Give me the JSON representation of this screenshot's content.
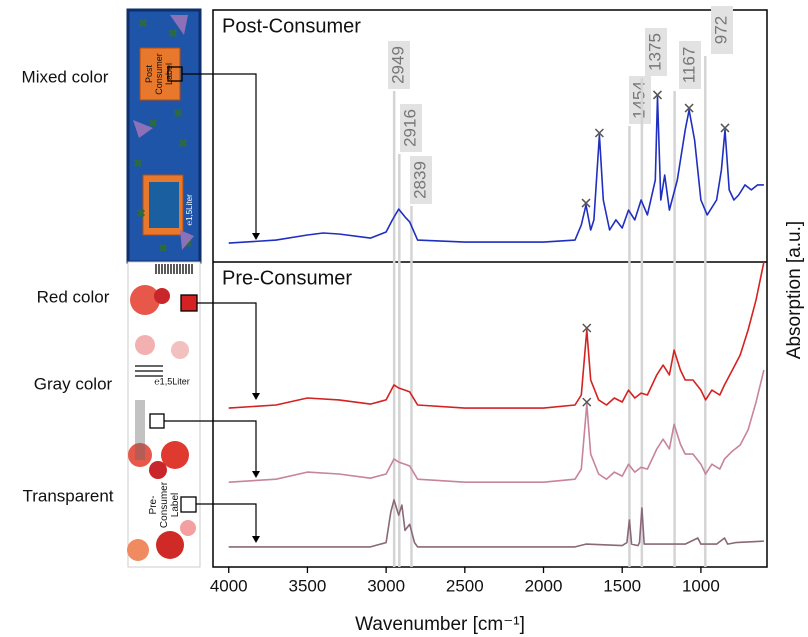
{
  "chart_data": {
    "type": "line",
    "xlabel": "Wavenumber [cm⁻¹]",
    "ylabel": "Absorption [a.u.]",
    "xlim": [
      4100,
      580
    ],
    "xticks": [
      4000,
      3500,
      3000,
      2500,
      2000,
      1500,
      1000
    ],
    "peaks": [
      2949,
      2916,
      2839,
      1454,
      1375,
      1167,
      972
    ],
    "image_labels": {
      "post": [
        "Post",
        "Consumer",
        "Label"
      ],
      "pre": [
        "Pre-",
        "Consumer",
        "Label"
      ],
      "volume": "℮1,5Liter"
    },
    "panels": [
      {
        "title": "Post-Consumer",
        "ylim": [
          0,
          100
        ],
        "series": [
          {
            "name": "Mixed color",
            "color": "#1f2fc0",
            "x": [
              4000,
              3700,
              3500,
              3400,
              3300,
              3100,
              3000,
              2960,
              2920,
              2880,
              2850,
              2800,
              2500,
              2000,
              1800,
              1760,
              1730,
              1700,
              1680,
              1645,
              1620,
              1580,
              1540,
              1500,
              1460,
              1420,
              1380,
              1340,
              1290,
              1276,
              1255,
              1230,
              1200,
              1150,
              1100,
              1075,
              1040,
              1000,
              960,
              900,
              870,
              847,
              820,
              790,
              760,
              720,
              680,
              640,
              600
            ],
            "values": [
              7.5,
              8.7,
              10.7,
              11.5,
              11.1,
              9.5,
              11.9,
              16.7,
              21.0,
              17.9,
              15.9,
              8.7,
              7.9,
              7.9,
              8.7,
              14.7,
              22.6,
              12.7,
              16.7,
              50.4,
              24.6,
              12.7,
              16.7,
              13.5,
              20.6,
              16.7,
              24.6,
              18.7,
              32.5,
              65.5,
              24.6,
              34.5,
              20.6,
              32.5,
              52.4,
              60.3,
              48.4,
              24.6,
              18.7,
              24.6,
              36.5,
              52.4,
              28.6,
              24.6,
              26.6,
              30.6,
              28.6,
              30.6,
              30.6
            ],
            "markers": {
              "x": [
                1730,
                1645,
                1276,
                1075,
                847
              ],
              "values": [
                22.6,
                50.4,
                65.5,
                60.3,
                52.4
              ]
            }
          }
        ]
      },
      {
        "title": "Pre-Consumer",
        "ylim": [
          0,
          100
        ],
        "series": [
          {
            "name": "Red color",
            "color": "#d42222",
            "x": [
              4000,
              3700,
              3500,
              3300,
              3100,
              3000,
              2950,
              2920,
              2880,
              2850,
              2800,
              2500,
              2000,
              1800,
              1760,
              1725,
              1700,
              1650,
              1600,
              1550,
              1500,
              1460,
              1420,
              1380,
              1340,
              1280,
              1240,
              1200,
              1170,
              1130,
              1100,
              1050,
              1000,
              970,
              930,
              880,
              850,
              800,
              750,
              700,
              650,
              600
            ],
            "values": [
              52.1,
              53.1,
              55.4,
              54.8,
              53.4,
              54.8,
              59.7,
              58.7,
              58.0,
              57.4,
              53.1,
              52.1,
              52.1,
              53.1,
              56.4,
              77.7,
              61.3,
              54.8,
              53.1,
              55.4,
              54.1,
              58.0,
              55.4,
              57.0,
              56.4,
              63.0,
              66.2,
              63.0,
              71.1,
              64.6,
              61.3,
              61.3,
              58.0,
              54.8,
              58.0,
              56.4,
              59.7,
              64.6,
              69.5,
              77.7,
              87.5,
              100
            ],
            "markers": {
              "x": [
                1725
              ],
              "values": [
                77.7
              ]
            }
          },
          {
            "name": "Gray color",
            "color": "#c7849a",
            "x": [
              4000,
              3700,
              3500,
              3300,
              3100,
              3000,
              2950,
              2920,
              2880,
              2850,
              2800,
              2500,
              2000,
              1800,
              1760,
              1725,
              1700,
              1650,
              1600,
              1550,
              1500,
              1460,
              1420,
              1380,
              1340,
              1280,
              1240,
              1200,
              1170,
              1130,
              1100,
              1050,
              1000,
              970,
              930,
              880,
              850,
              800,
              750,
              700,
              650,
              600
            ],
            "values": [
              27.8,
              28.8,
              31.1,
              30.5,
              29.1,
              30.5,
              35.4,
              34.4,
              33.7,
              33.1,
              28.8,
              27.8,
              27.8,
              28.8,
              32.1,
              53.4,
              37.0,
              30.5,
              28.8,
              31.1,
              29.8,
              33.7,
              31.1,
              32.7,
              32.1,
              38.7,
              41.9,
              38.7,
              46.8,
              40.3,
              37.0,
              37.0,
              33.7,
              30.5,
              33.7,
              32.1,
              35.4,
              38.0,
              40.0,
              45.0,
              54.0,
              64.6
            ],
            "markers": {
              "x": [
                1725
              ],
              "values": [
                53.4
              ]
            }
          },
          {
            "name": "Transparent",
            "color": "#8a6878",
            "x": [
              4000,
              3100,
              3000,
              2970,
              2950,
              2920,
              2900,
              2880,
              2850,
              2820,
              2800,
              1800,
              1730,
              1500,
              1470,
              1454,
              1440,
              1400,
              1390,
              1375,
              1360,
              1300,
              1100,
              1020,
              1000,
              900,
              850,
              830,
              780,
              600
            ],
            "values": [
              6.6,
              6.6,
              8.0,
              18.0,
              22.0,
              17.0,
              20.3,
              12.0,
              14.0,
              8.0,
              6.6,
              6.6,
              7.5,
              7.0,
              8.0,
              15.4,
              7.5,
              7.0,
              8.0,
              19.3,
              7.5,
              7.5,
              7.5,
              9.5,
              7.5,
              7.5,
              9.5,
              7.5,
              8.0,
              8.5
            ]
          }
        ]
      }
    ]
  }
}
